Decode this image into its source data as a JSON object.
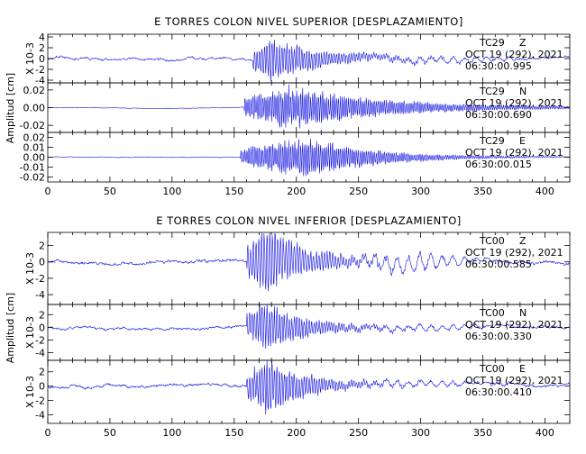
{
  "trace_color": "#1010e0",
  "x_axis": {
    "range": [
      0,
      420
    ],
    "ticks": [
      0,
      50,
      100,
      150,
      200,
      250,
      300,
      350,
      400
    ]
  },
  "groups": [
    {
      "title": "E TORRES COLON NIVEL SUPERIOR [DESPLAZAMIENTO]",
      "ylabel": "Amplitud [cm]",
      "panels": [
        {
          "station": "TC29",
          "component": "Z",
          "date": "OCT 19 (292), 2021",
          "time": "06:30:00.995",
          "scale_label": "X 10-3",
          "ylim": [
            -0.0045,
            0.0045
          ],
          "ticks": [
            -0.004,
            -0.002,
            0,
            0.002,
            0.004
          ],
          "tick_labels": [
            "-4",
            "-2",
            "0",
            "2",
            "4"
          ],
          "trace": {
            "noise_amp": 0.0006,
            "start": 165,
            "peak": 180,
            "decay": 45,
            "amp": 0.0042,
            "period": 2.0,
            "tail_amp": 0.0005,
            "tail_center": 320,
            "tail_width": 60,
            "seed": 3
          }
        },
        {
          "station": "TC29",
          "component": "N",
          "date": "OCT 19 (292), 2021",
          "time": "06:30:00.690",
          "scale_label": "",
          "ylim": [
            -0.028,
            0.028
          ],
          "ticks": [
            -0.02,
            0,
            0.02
          ],
          "tick_labels": [
            "-0.02",
            "0.00",
            "0.02"
          ],
          "trace": {
            "noise_amp": 0.0008,
            "start": 158,
            "peak": 195,
            "decay": 80,
            "amp": 0.027,
            "period": 1.6,
            "tail_amp": 0.0,
            "tail_center": 300,
            "tail_width": 60,
            "seed": 11
          }
        },
        {
          "station": "TC29",
          "component": "E",
          "date": "OCT 19 (292), 2021",
          "time": "06:30:00.015",
          "scale_label": "",
          "ylim": [
            -0.025,
            0.025
          ],
          "ticks": [
            -0.02,
            -0.01,
            0,
            0.01,
            0.02
          ],
          "tick_labels": [
            "-0.02",
            "-0.01",
            "0.00",
            "0.01",
            "0.02"
          ],
          "trace": {
            "noise_amp": 0.0008,
            "start": 155,
            "peak": 210,
            "decay": 55,
            "amp": 0.022,
            "period": 1.6,
            "tail_amp": 0.0,
            "tail_center": 300,
            "tail_width": 60,
            "seed": 23
          }
        }
      ]
    },
    {
      "title": "E TORRES COLON NIVEL INFERIOR [DESPLAZAMIENTO]",
      "ylabel": "Amplitud [cm]",
      "panels": [
        {
          "station": "TC00",
          "component": "Z",
          "date": "OCT 19 (292), 2021",
          "time": "06:30:00.585",
          "scale_label": "X 10-3",
          "ylim": [
            -0.0052,
            0.0036
          ],
          "ticks": [
            -0.004,
            -0.002,
            0,
            0.002
          ],
          "tick_labels": [
            "-4",
            "-2",
            "0",
            "2"
          ],
          "trace": {
            "noise_amp": 0.0005,
            "start": 160,
            "peak": 178,
            "decay": 35,
            "amp": 0.0045,
            "period": 2.2,
            "tail_amp": 0.001,
            "tail_center": 290,
            "tail_width": 45,
            "seed": 31
          }
        },
        {
          "station": "TC00",
          "component": "N",
          "date": "OCT 19 (292), 2021",
          "time": "06:30:00.330",
          "scale_label": "X 10-3",
          "ylim": [
            -0.0052,
            0.0036
          ],
          "ticks": [
            -0.004,
            -0.002,
            0,
            0.002
          ],
          "tick_labels": [
            "-4",
            "-2",
            "0",
            "2"
          ],
          "trace": {
            "noise_amp": 0.0005,
            "start": 160,
            "peak": 176,
            "decay": 35,
            "amp": 0.0042,
            "period": 2.0,
            "tail_amp": 0.0004,
            "tail_center": 300,
            "tail_width": 60,
            "seed": 47
          }
        },
        {
          "station": "TC00",
          "component": "E",
          "date": "OCT 19 (292), 2021",
          "time": "06:30:00.410",
          "scale_label": "X 10-3",
          "ylim": [
            -0.0052,
            0.0036
          ],
          "ticks": [
            -0.004,
            -0.002,
            0,
            0.002
          ],
          "tick_labels": [
            "-4",
            "-2",
            "0",
            "2"
          ],
          "trace": {
            "noise_amp": 0.0005,
            "start": 160,
            "peak": 176,
            "decay": 35,
            "amp": 0.0044,
            "period": 2.0,
            "tail_amp": 0.0004,
            "tail_center": 300,
            "tail_width": 60,
            "seed": 59
          }
        }
      ]
    }
  ],
  "chart_data": {
    "type": "line",
    "xlim": [
      0,
      420
    ],
    "xticks": [
      0,
      50,
      100,
      150,
      200,
      250,
      300,
      350,
      400
    ],
    "series": [
      {
        "name": "TC29 Z",
        "envelope": {
          "onset": 165,
          "peak": 180,
          "peak_amplitude": 0.0042
        }
      },
      {
        "name": "TC29 N",
        "envelope": {
          "onset": 158,
          "peak": 195,
          "peak_amplitude": 0.027
        }
      },
      {
        "name": "TC29 E",
        "envelope": {
          "onset": 155,
          "peak": 210,
          "peak_amplitude": 0.022
        }
      },
      {
        "name": "TC00 Z",
        "envelope": {
          "onset": 160,
          "peak": 178,
          "peak_amplitude": 0.0045
        }
      },
      {
        "name": "TC00 N",
        "envelope": {
          "onset": 160,
          "peak": 176,
          "peak_amplitude": 0.0042
        }
      },
      {
        "name": "TC00 E",
        "envelope": {
          "onset": 160,
          "peak": 176,
          "peak_amplitude": 0.0044
        }
      }
    ]
  }
}
